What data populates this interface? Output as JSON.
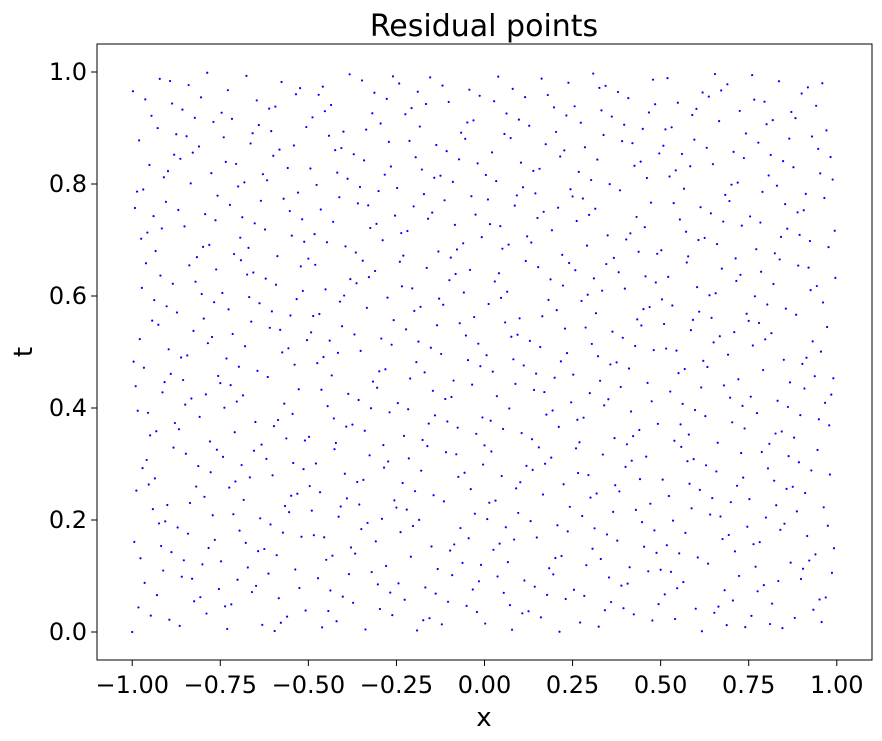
{
  "chart_data": {
    "type": "scatter",
    "title": "Residual points",
    "xlabel": "x",
    "ylabel": "t",
    "xlim": [
      -1.1,
      1.1
    ],
    "ylim": [
      -0.05,
      1.05
    ],
    "xticks": [
      -1.0,
      -0.75,
      -0.5,
      -0.25,
      0.0,
      0.25,
      0.5,
      0.75,
      1.0
    ],
    "xtick_labels": [
      "−1.00",
      "−0.75",
      "−0.50",
      "−0.25",
      "0.00",
      "0.25",
      "0.50",
      "0.75",
      "1.00"
    ],
    "yticks": [
      0.0,
      0.2,
      0.4,
      0.6,
      0.8,
      1.0
    ],
    "ytick_labels": [
      "0.0",
      "0.2",
      "0.4",
      "0.6",
      "0.8",
      "1.0"
    ],
    "grid": false,
    "marker_color": "#0000ff",
    "series": [
      {
        "point_count": 1000,
        "sampling": "quasi-random (Halton-like) over x in [-1, 1], t in [0, 1]",
        "x_range": [
          -1.0,
          1.0
        ],
        "t_range": [
          0.0,
          1.0
        ]
      }
    ]
  }
}
